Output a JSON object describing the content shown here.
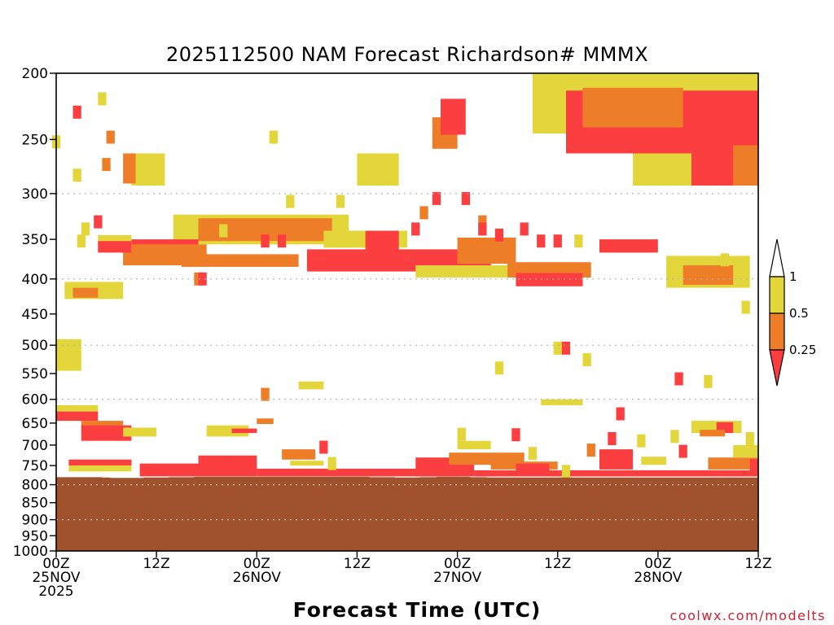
{
  "chart_data": {
    "type": "heatmap",
    "title": "2025112500 NAM Forecast Richardson# MMMX",
    "xlabel": "Forecast Time (UTC)",
    "ylabel": "",
    "credit": "coolwx.com/modelts",
    "yaxis": {
      "scale": "log-pressure",
      "range": [
        1000,
        200
      ],
      "ticks": [
        "200",
        "250",
        "300",
        "350",
        "400",
        "450",
        "500",
        "550",
        "600",
        "650",
        "700",
        "750",
        "800",
        "850",
        "900",
        "950",
        "1000"
      ],
      "gridlines_at": [
        300,
        400,
        500,
        600,
        800,
        900,
        1000
      ]
    },
    "xaxis": {
      "range_hours": [
        0,
        84
      ],
      "ticks": [
        {
          "hour": 0,
          "lines": [
            "00Z",
            "25NOV",
            "2025"
          ]
        },
        {
          "hour": 12,
          "lines": [
            "12Z"
          ]
        },
        {
          "hour": 24,
          "lines": [
            "00Z",
            "26NOV"
          ]
        },
        {
          "hour": 36,
          "lines": [
            "12Z"
          ]
        },
        {
          "hour": 48,
          "lines": [
            "00Z",
            "27NOV"
          ]
        },
        {
          "hour": 60,
          "lines": [
            "12Z"
          ]
        },
        {
          "hour": 72,
          "lines": [
            "00Z",
            "28NOV"
          ]
        },
        {
          "hour": 84,
          "lines": [
            "12Z"
          ]
        }
      ]
    },
    "legend": {
      "placement": "right",
      "thresholds": [
        "1",
        "0.5",
        "0.25"
      ],
      "classes": [
        {
          "name": "0.5-1",
          "color": "#e3d63a"
        },
        {
          "name": "0.25-0.5",
          "color": "#ee7d27"
        },
        {
          "name": "<0.25",
          "color": "#fb3f41"
        }
      ]
    },
    "colors": {
      "low": "#fb3f41",
      "mid": "#ee7d27",
      "high": "#e3d63a",
      "ground": "#a0522d"
    },
    "ground_top_hpa": [
      780,
      780,
      780,
      780,
      780,
      780,
      781,
      782,
      782,
      782,
      782,
      781,
      781,
      781,
      780,
      780,
      780,
      779,
      779,
      779,
      779,
      779,
      779,
      779,
      779,
      779,
      779,
      779,
      779,
      779,
      779,
      779,
      779,
      779,
      779,
      779,
      779,
      779,
      780,
      780,
      780,
      781,
      781,
      781,
      780,
      780,
      779,
      779,
      779,
      779,
      780,
      780,
      781,
      781,
      781,
      781,
      781,
      781,
      781,
      781,
      781,
      781,
      781,
      781,
      781,
      781,
      781,
      781,
      781,
      781,
      781,
      781,
      781,
      781,
      781,
      781,
      781,
      781,
      781,
      781,
      781,
      781,
      781,
      781,
      781
    ],
    "regions": [
      {
        "v": "high",
        "t": [
          57,
          84
        ],
        "p": [
          200,
          245
        ]
      },
      {
        "v": "low",
        "t": [
          61,
          84
        ],
        "p": [
          212,
          262
        ]
      },
      {
        "v": "mid",
        "t": [
          63,
          75
        ],
        "p": [
          210,
          240
        ]
      },
      {
        "v": "high",
        "t": [
          69,
          78
        ],
        "p": [
          262,
          292
        ]
      },
      {
        "v": "low",
        "t": [
          76,
          84
        ],
        "p": [
          235,
          292
        ]
      },
      {
        "v": "mid",
        "t": [
          81,
          84
        ],
        "p": [
          255,
          292
        ]
      },
      {
        "v": "high",
        "t": [
          9,
          13
        ],
        "p": [
          262,
          292
        ]
      },
      {
        "v": "mid",
        "t": [
          8,
          9.5
        ],
        "p": [
          262,
          290
        ]
      },
      {
        "v": "high",
        "t": [
          36,
          41
        ],
        "p": [
          262,
          292
        ]
      },
      {
        "v": "mid",
        "t": [
          45,
          48
        ],
        "p": [
          232,
          258
        ]
      },
      {
        "v": "low",
        "t": [
          46,
          49
        ],
        "p": [
          218,
          246
        ]
      },
      {
        "v": "high",
        "t": [
          14,
          35
        ],
        "p": [
          322,
          356
        ]
      },
      {
        "v": "mid",
        "t": [
          17,
          33
        ],
        "p": [
          326,
          352
        ]
      },
      {
        "v": "low",
        "t": [
          9,
          17
        ],
        "p": [
          350,
          374
        ]
      },
      {
        "v": "mid",
        "t": [
          8,
          18
        ],
        "p": [
          356,
          382
        ]
      },
      {
        "v": "high",
        "t": [
          5,
          9
        ],
        "p": [
          345,
          362
        ]
      },
      {
        "v": "low",
        "t": [
          5,
          9
        ],
        "p": [
          352,
          366
        ]
      },
      {
        "v": "mid",
        "t": [
          15,
          29
        ],
        "p": [
          368,
          384
        ]
      },
      {
        "v": "low",
        "t": [
          30,
          52
        ],
        "p": [
          362,
          390
        ]
      },
      {
        "v": "mid",
        "t": [
          48,
          55
        ],
        "p": [
          348,
          380
        ]
      },
      {
        "v": "high",
        "t": [
          32,
          42
        ],
        "p": [
          340,
          360
        ]
      },
      {
        "v": "low",
        "t": [
          37,
          41
        ],
        "p": [
          340,
          366
        ]
      },
      {
        "v": "high",
        "t": [
          43,
          55
        ],
        "p": [
          382,
          398
        ]
      },
      {
        "v": "mid",
        "t": [
          54,
          64
        ],
        "p": [
          378,
          398
        ]
      },
      {
        "v": "low",
        "t": [
          55,
          63
        ],
        "p": [
          392,
          410
        ]
      },
      {
        "v": "low",
        "t": [
          65,
          72
        ],
        "p": [
          350,
          366
        ]
      },
      {
        "v": "high",
        "t": [
          73,
          83
        ],
        "p": [
          370,
          412
        ]
      },
      {
        "v": "mid",
        "t": [
          75,
          81
        ],
        "p": [
          382,
          408
        ]
      },
      {
        "v": "high",
        "t": [
          1,
          8
        ],
        "p": [
          404,
          428
        ]
      },
      {
        "v": "mid",
        "t": [
          2,
          5
        ],
        "p": [
          412,
          426
        ]
      },
      {
        "v": "high",
        "t": [
          0,
          3
        ],
        "p": [
          490,
          545
        ]
      },
      {
        "v": "high",
        "t": [
          29,
          32
        ],
        "p": [
          565,
          580
        ]
      },
      {
        "v": "high",
        "t": [
          58,
          63
        ],
        "p": [
          600,
          612
        ]
      },
      {
        "v": "high",
        "t": [
          0,
          5
        ],
        "p": [
          612,
          625
        ]
      },
      {
        "v": "low",
        "t": [
          0,
          5
        ],
        "p": [
          625,
          645
        ]
      },
      {
        "v": "mid",
        "t": [
          3,
          8
        ],
        "p": [
          645,
          670
        ]
      },
      {
        "v": "low",
        "t": [
          3,
          9
        ],
        "p": [
          655,
          690
        ]
      },
      {
        "v": "high",
        "t": [
          8,
          12
        ],
        "p": [
          660,
          680
        ]
      },
      {
        "v": "low",
        "t": [
          1.5,
          9
        ],
        "p": [
          735,
          750
        ]
      },
      {
        "v": "high",
        "t": [
          1.5,
          9
        ],
        "p": [
          750,
          765
        ]
      },
      {
        "v": "high",
        "t": [
          18,
          23
        ],
        "p": [
          655,
          680
        ]
      },
      {
        "v": "low",
        "t": [
          21,
          24
        ],
        "p": [
          662,
          672
        ]
      },
      {
        "v": "mid",
        "t": [
          24,
          26
        ],
        "p": [
          640,
          652
        ]
      },
      {
        "v": "low",
        "t": [
          17,
          24
        ],
        "p": [
          725,
          760
        ]
      },
      {
        "v": "low",
        "t": [
          10,
          24
        ],
        "p": [
          745,
          778
        ]
      },
      {
        "v": "mid",
        "t": [
          27,
          31
        ],
        "p": [
          710,
          735
        ]
      },
      {
        "v": "low",
        "t": [
          24,
          48
        ],
        "p": [
          758,
          778
        ]
      },
      {
        "v": "high",
        "t": [
          28,
          32
        ],
        "p": [
          738,
          750
        ]
      },
      {
        "v": "low",
        "t": [
          43,
          50
        ],
        "p": [
          730,
          778
        ]
      },
      {
        "v": "mid",
        "t": [
          47,
          56
        ],
        "p": [
          718,
          748
        ]
      },
      {
        "v": "high",
        "t": [
          48,
          52
        ],
        "p": [
          690,
          710
        ]
      },
      {
        "v": "low",
        "t": [
          50,
          84
        ],
        "p": [
          762,
          778
        ]
      },
      {
        "v": "mid",
        "t": [
          52,
          60
        ],
        "p": [
          740,
          760
        ]
      },
      {
        "v": "low",
        "t": [
          65,
          69
        ],
        "p": [
          710,
          760
        ]
      },
      {
        "v": "high",
        "t": [
          70,
          73
        ],
        "p": [
          728,
          748
        ]
      },
      {
        "v": "high",
        "t": [
          76,
          82
        ],
        "p": [
          645,
          672
        ]
      },
      {
        "v": "low",
        "t": [
          79,
          81
        ],
        "p": [
          648,
          672
        ]
      },
      {
        "v": "mid",
        "t": [
          77,
          80
        ],
        "p": [
          665,
          680
        ]
      },
      {
        "v": "mid",
        "t": [
          78,
          84
        ],
        "p": [
          730,
          760
        ]
      },
      {
        "v": "high",
        "t": [
          81,
          84
        ],
        "p": [
          700,
          730
        ]
      },
      {
        "v": "low",
        "t": [
          55,
          59
        ],
        "p": [
          745,
          765
        ]
      }
    ],
    "cells": [
      {
        "v": "low",
        "t": 2.5,
        "p": 228
      },
      {
        "v": "high",
        "t": 5.5,
        "p": 218
      },
      {
        "v": "mid",
        "t": 6.5,
        "p": 248
      },
      {
        "v": "mid",
        "t": 6,
        "p": 272
      },
      {
        "v": "high",
        "t": 2.5,
        "p": 282
      },
      {
        "v": "high",
        "t": 0,
        "p": 252
      },
      {
        "v": "high",
        "t": 26,
        "p": 248
      },
      {
        "v": "high",
        "t": 20,
        "p": 340
      },
      {
        "v": "high",
        "t": 28,
        "p": 308
      },
      {
        "v": "high",
        "t": 34,
        "p": 308
      },
      {
        "v": "low",
        "t": 25,
        "p": 352
      },
      {
        "v": "low",
        "t": 27,
        "p": 352
      },
      {
        "v": "low",
        "t": 43,
        "p": 338
      },
      {
        "v": "mid",
        "t": 44,
        "p": 320
      },
      {
        "v": "low",
        "t": 45.5,
        "p": 305
      },
      {
        "v": "low",
        "t": 49,
        "p": 305
      },
      {
        "v": "mid",
        "t": 51,
        "p": 330
      },
      {
        "v": "low",
        "t": 51,
        "p": 338
      },
      {
        "v": "low",
        "t": 53,
        "p": 345
      },
      {
        "v": "low",
        "t": 56,
        "p": 338
      },
      {
        "v": "low",
        "t": 58,
        "p": 352
      },
      {
        "v": "low",
        "t": 60,
        "p": 352
      },
      {
        "v": "high",
        "t": 62.5,
        "p": 352
      },
      {
        "v": "mid",
        "t": 17,
        "p": 400
      },
      {
        "v": "low",
        "t": 17.5,
        "p": 400
      },
      {
        "v": "high",
        "t": 3.5,
        "p": 338
      },
      {
        "v": "low",
        "t": 5,
        "p": 330
      },
      {
        "v": "high",
        "t": 3,
        "p": 352
      },
      {
        "v": "high",
        "t": 80,
        "p": 375
      },
      {
        "v": "high",
        "t": 82.5,
        "p": 440
      },
      {
        "v": "high",
        "t": 53,
        "p": 540
      },
      {
        "v": "high",
        "t": 60,
        "p": 505
      },
      {
        "v": "low",
        "t": 61,
        "p": 505
      },
      {
        "v": "high",
        "t": 63.5,
        "p": 525
      },
      {
        "v": "low",
        "t": 74.5,
        "p": 560
      },
      {
        "v": "high",
        "t": 78,
        "p": 565
      },
      {
        "v": "low",
        "t": 67.5,
        "p": 630
      },
      {
        "v": "mid",
        "t": 25,
        "p": 590
      },
      {
        "v": "high",
        "t": 61,
        "p": 765
      },
      {
        "v": "high",
        "t": 57,
        "p": 720
      },
      {
        "v": "mid",
        "t": 64,
        "p": 712
      },
      {
        "v": "low",
        "t": 66.5,
        "p": 685
      },
      {
        "v": "high",
        "t": 70,
        "p": 690
      },
      {
        "v": "high",
        "t": 74,
        "p": 680
      },
      {
        "v": "low",
        "t": 75,
        "p": 715
      },
      {
        "v": "high",
        "t": 83,
        "p": 685
      },
      {
        "v": "low",
        "t": 83.5,
        "p": 750
      },
      {
        "v": "high",
        "t": 33,
        "p": 745
      },
      {
        "v": "low",
        "t": 32,
        "p": 705
      },
      {
        "v": "high",
        "t": 48.5,
        "p": 675
      },
      {
        "v": "low",
        "t": 55,
        "p": 676
      }
    ]
  }
}
